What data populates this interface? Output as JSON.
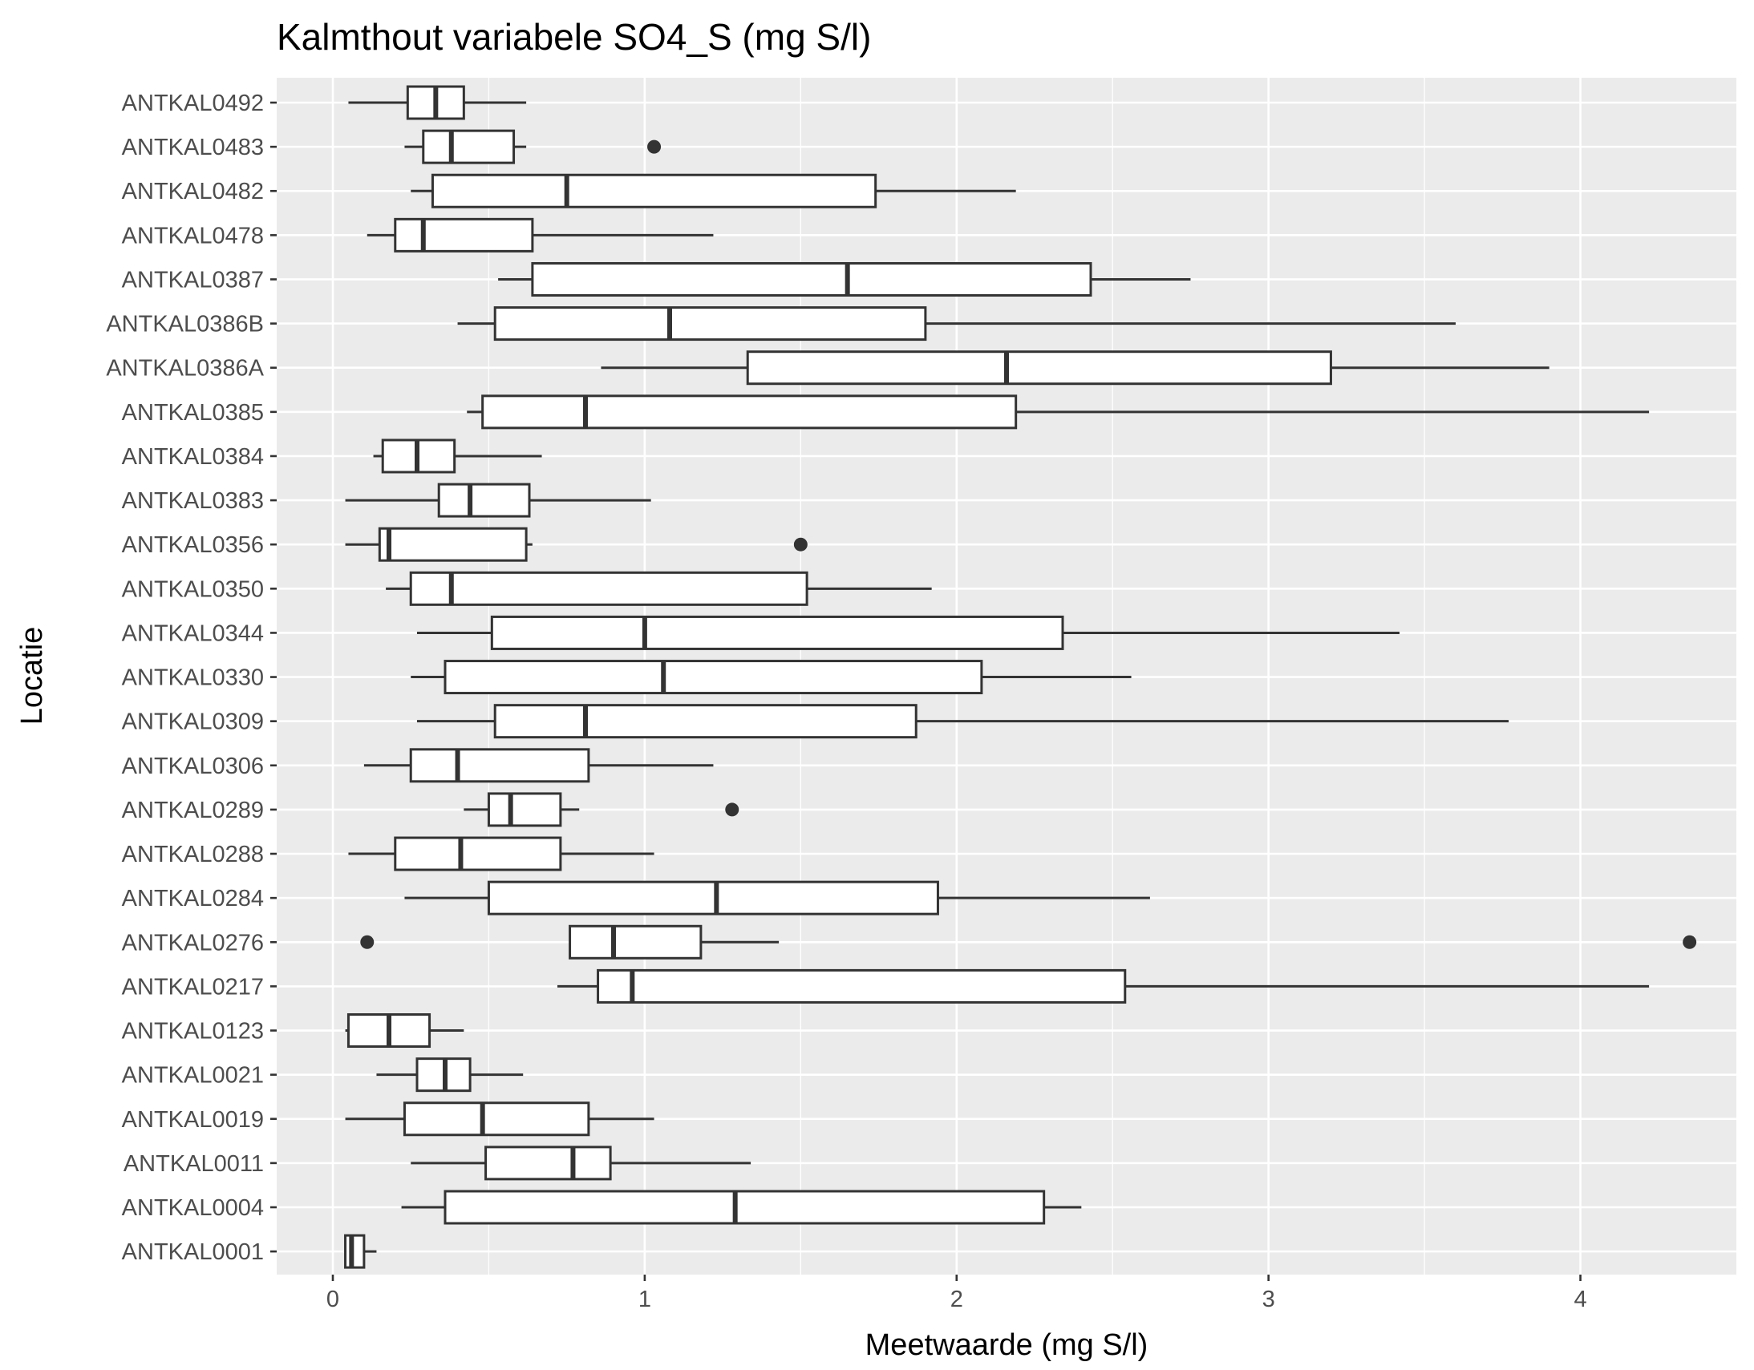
{
  "chart_data": {
    "type": "boxplot",
    "orientation": "horizontal",
    "title": "Kalmthout variabele SO4_S (mg S/l)",
    "xlabel": "Meetwaarde (mg S/l)",
    "ylabel": "Locatie",
    "xlim": [
      -0.18,
      4.5
    ],
    "x_ticks": [
      0,
      1,
      2,
      3,
      4
    ],
    "x_tick_labels": [
      "0",
      "1",
      "2",
      "3",
      "4"
    ],
    "grid": true,
    "legend": "none",
    "colors": {
      "panel_background": "#ebebeb",
      "grid": "#ffffff",
      "box_fill": "#ffffff",
      "box_stroke": "#333333",
      "outlier": "#333333",
      "tick_text": "#4d4d4d",
      "title_text": "#000000"
    },
    "categories": [
      "ANTKAL0492",
      "ANTKAL0483",
      "ANTKAL0482",
      "ANTKAL0478",
      "ANTKAL0387",
      "ANTKAL0386B",
      "ANTKAL0386A",
      "ANTKAL0385",
      "ANTKAL0384",
      "ANTKAL0383",
      "ANTKAL0356",
      "ANTKAL0350",
      "ANTKAL0344",
      "ANTKAL0330",
      "ANTKAL0309",
      "ANTKAL0306",
      "ANTKAL0289",
      "ANTKAL0288",
      "ANTKAL0284",
      "ANTKAL0276",
      "ANTKAL0217",
      "ANTKAL0123",
      "ANTKAL0021",
      "ANTKAL0019",
      "ANTKAL0011",
      "ANTKAL0004",
      "ANTKAL0001"
    ],
    "boxes": [
      {
        "location": "ANTKAL0492",
        "min": 0.05,
        "q1": 0.24,
        "median": 0.33,
        "q3": 0.42,
        "max": 0.62,
        "outliers": []
      },
      {
        "location": "ANTKAL0483",
        "min": 0.23,
        "q1": 0.29,
        "median": 0.38,
        "q3": 0.58,
        "max": 0.62,
        "outliers": [
          1.03
        ]
      },
      {
        "location": "ANTKAL0482",
        "min": 0.25,
        "q1": 0.32,
        "median": 0.75,
        "q3": 1.74,
        "max": 2.19,
        "outliers": []
      },
      {
        "location": "ANTKAL0478",
        "min": 0.11,
        "q1": 0.2,
        "median": 0.29,
        "q3": 0.64,
        "max": 1.22,
        "outliers": []
      },
      {
        "location": "ANTKAL0387",
        "min": 0.53,
        "q1": 0.64,
        "median": 1.65,
        "q3": 2.43,
        "max": 2.75,
        "outliers": []
      },
      {
        "location": "ANTKAL0386B",
        "min": 0.4,
        "q1": 0.52,
        "median": 1.08,
        "q3": 1.9,
        "max": 3.6,
        "outliers": []
      },
      {
        "location": "ANTKAL0386A",
        "min": 0.86,
        "q1": 1.33,
        "median": 2.16,
        "q3": 3.2,
        "max": 3.9,
        "outliers": []
      },
      {
        "location": "ANTKAL0385",
        "min": 0.43,
        "q1": 0.48,
        "median": 0.81,
        "q3": 2.19,
        "max": 4.22,
        "outliers": []
      },
      {
        "location": "ANTKAL0384",
        "min": 0.13,
        "q1": 0.16,
        "median": 0.27,
        "q3": 0.39,
        "max": 0.67,
        "outliers": []
      },
      {
        "location": "ANTKAL0383",
        "min": 0.04,
        "q1": 0.34,
        "median": 0.44,
        "q3": 0.63,
        "max": 1.02,
        "outliers": []
      },
      {
        "location": "ANTKAL0356",
        "min": 0.04,
        "q1": 0.15,
        "median": 0.18,
        "q3": 0.62,
        "max": 0.64,
        "outliers": [
          1.5
        ]
      },
      {
        "location": "ANTKAL0350",
        "min": 0.17,
        "q1": 0.25,
        "median": 0.38,
        "q3": 1.52,
        "max": 1.92,
        "outliers": []
      },
      {
        "location": "ANTKAL0344",
        "min": 0.27,
        "q1": 0.51,
        "median": 1.0,
        "q3": 2.34,
        "max": 3.42,
        "outliers": []
      },
      {
        "location": "ANTKAL0330",
        "min": 0.25,
        "q1": 0.36,
        "median": 1.06,
        "q3": 2.08,
        "max": 2.56,
        "outliers": []
      },
      {
        "location": "ANTKAL0309",
        "min": 0.27,
        "q1": 0.52,
        "median": 0.81,
        "q3": 1.87,
        "max": 3.77,
        "outliers": []
      },
      {
        "location": "ANTKAL0306",
        "min": 0.1,
        "q1": 0.25,
        "median": 0.4,
        "q3": 0.82,
        "max": 1.22,
        "outliers": []
      },
      {
        "location": "ANTKAL0289",
        "min": 0.42,
        "q1": 0.5,
        "median": 0.57,
        "q3": 0.73,
        "max": 0.79,
        "outliers": [
          1.28
        ]
      },
      {
        "location": "ANTKAL0288",
        "min": 0.05,
        "q1": 0.2,
        "median": 0.41,
        "q3": 0.73,
        "max": 1.03,
        "outliers": []
      },
      {
        "location": "ANTKAL0284",
        "min": 0.23,
        "q1": 0.5,
        "median": 1.23,
        "q3": 1.94,
        "max": 2.62,
        "outliers": []
      },
      {
        "location": "ANTKAL0276",
        "min": 0.76,
        "q1": 0.76,
        "median": 0.9,
        "q3": 1.18,
        "max": 1.43,
        "outliers": [
          0.11,
          4.35
        ]
      },
      {
        "location": "ANTKAL0217",
        "min": 0.72,
        "q1": 0.85,
        "median": 0.96,
        "q3": 2.54,
        "max": 4.22,
        "outliers": []
      },
      {
        "location": "ANTKAL0123",
        "min": 0.04,
        "q1": 0.05,
        "median": 0.18,
        "q3": 0.31,
        "max": 0.42,
        "outliers": []
      },
      {
        "location": "ANTKAL0021",
        "min": 0.14,
        "q1": 0.27,
        "median": 0.36,
        "q3": 0.44,
        "max": 0.61,
        "outliers": []
      },
      {
        "location": "ANTKAL0019",
        "min": 0.04,
        "q1": 0.23,
        "median": 0.48,
        "q3": 0.82,
        "max": 1.03,
        "outliers": []
      },
      {
        "location": "ANTKAL0011",
        "min": 0.25,
        "q1": 0.49,
        "median": 0.77,
        "q3": 0.89,
        "max": 1.34,
        "outliers": []
      },
      {
        "location": "ANTKAL0004",
        "min": 0.22,
        "q1": 0.36,
        "median": 1.29,
        "q3": 2.28,
        "max": 2.4,
        "outliers": []
      },
      {
        "location": "ANTKAL0001",
        "min": 0.04,
        "q1": 0.04,
        "median": 0.06,
        "q3": 0.1,
        "max": 0.14,
        "outliers": []
      }
    ]
  }
}
